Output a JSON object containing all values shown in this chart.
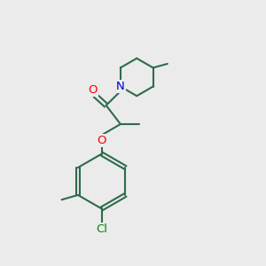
{
  "bg_color": "#ebebeb",
  "bond_color": "#2d6b4a",
  "bond_width": 1.5,
  "atom_colors": {
    "O": "#ff0000",
    "N": "#0000cc",
    "Cl": "#008800",
    "C": "#2d6b4a"
  }
}
